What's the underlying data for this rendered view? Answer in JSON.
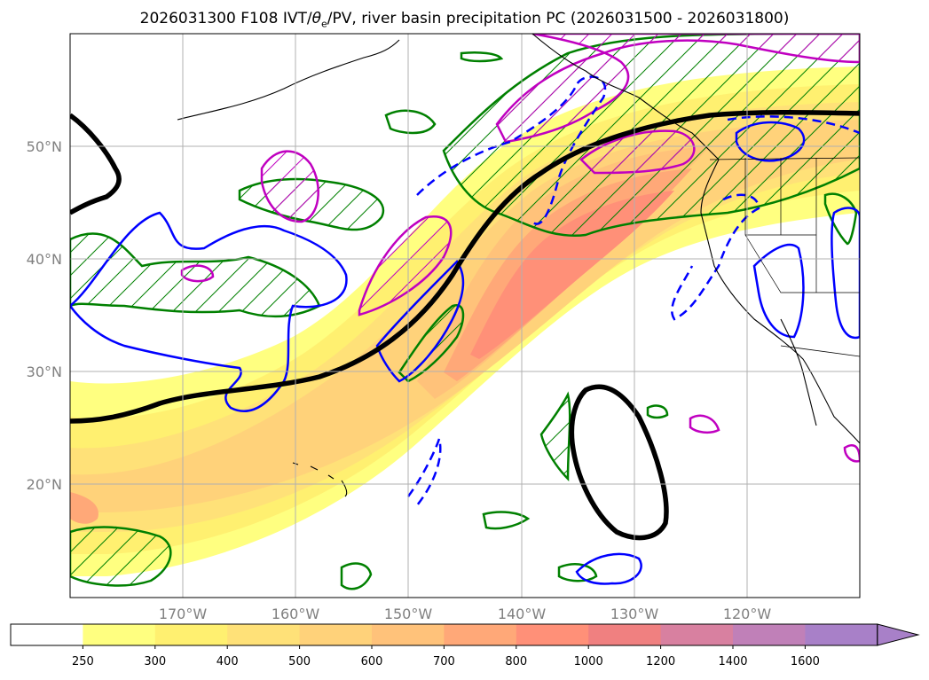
{
  "title": {
    "prefix": "2026031300 F108 IVT/",
    "theta": "θ",
    "theta_sub": "e",
    "suffix": "/PV, river basin precipitation PC (2026031500 - 2026031800)"
  },
  "axes": {
    "lat_labels": [
      "50°N",
      "40°N",
      "30°N",
      "20°N"
    ],
    "lon_labels": [
      "170°W",
      "160°W",
      "150°W",
      "140°W",
      "130°W",
      "120°W"
    ]
  },
  "colors": {
    "ivt_250": "#ffff80",
    "ivt_300": "#fff070",
    "ivt_400": "#ffe178",
    "ivt_500": "#ffd27a",
    "ivt_600": "#ffc27a",
    "ivt_700": "#ffa878",
    "ivt_800": "#ff9078",
    "ivt_1000": "#f08080",
    "ivt_1200": "#d880a0",
    "ivt_1400": "#c080b8",
    "ivt_1600": "#a880c8",
    "pv_contour": "#000000",
    "theta_e_positive": "#0000ff",
    "precip_pc_positive": "#008000",
    "precip_pc_negative": "#c000c0",
    "coastline": "#000000",
    "grid": "#b0b0b0",
    "axis_label": "#808080"
  },
  "colorbar": {
    "ticks": [
      "250",
      "300",
      "400",
      "500",
      "600",
      "700",
      "800",
      "1000",
      "1200",
      "1400",
      "1600"
    ],
    "extend": "max"
  }
}
